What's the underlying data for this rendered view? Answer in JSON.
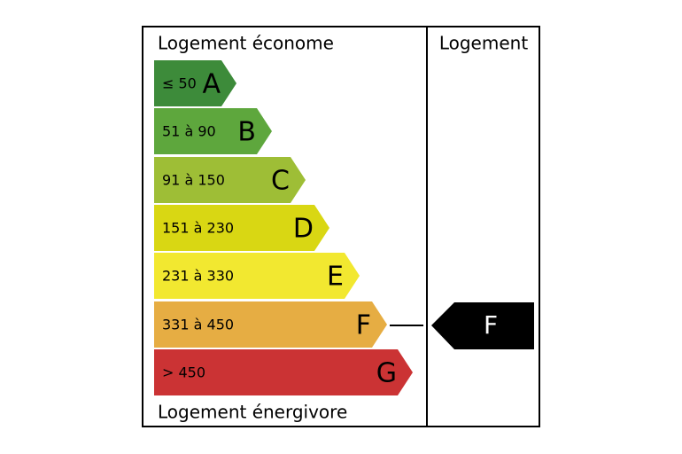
{
  "header": {
    "left_title": "Logement économe",
    "right_title": "Logement",
    "footer": "Logement énergivore"
  },
  "bands": [
    {
      "range": "≤ 50",
      "letter": "A",
      "color": "#3d8b3a"
    },
    {
      "range": "51 à 90",
      "letter": "B",
      "color": "#5ea73d"
    },
    {
      "range": "91 à 150",
      "letter": "C",
      "color": "#9ebe36"
    },
    {
      "range": "151 à 230",
      "letter": "D",
      "color": "#d9d713"
    },
    {
      "range": "231 à 330",
      "letter": "E",
      "color": "#f2e830"
    },
    {
      "range": "331 à 450",
      "letter": "F",
      "color": "#e6ad43"
    },
    {
      "range": "> 450",
      "letter": "G",
      "color": "#cb3334"
    }
  ],
  "rating": {
    "letter": "F"
  }
}
